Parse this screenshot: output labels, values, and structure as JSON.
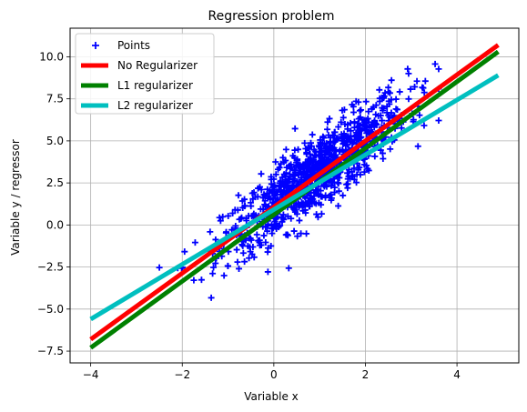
{
  "chart_data": {
    "type": "scatter",
    "title": "Regression problem",
    "xlabel": "Variable x",
    "ylabel": "Variable y / regressor",
    "xlim": [
      -4.45,
      5.35
    ],
    "ylim": [
      -8.2,
      11.7
    ],
    "xticks": [
      -4,
      -2,
      0,
      2,
      4
    ],
    "xtick_labels": [
      "−4",
      "−2",
      "0",
      "2",
      "4"
    ],
    "yticks": [
      -7.5,
      -5.0,
      -2.5,
      0.0,
      2.5,
      5.0,
      7.5,
      10.0
    ],
    "ytick_labels": [
      "−7.5",
      "−5.0",
      "−2.5",
      "0.0",
      "2.5",
      "5.0",
      "7.5",
      "10.0"
    ],
    "grid": true,
    "legend_position": "top-left",
    "points": {
      "name": "Points",
      "color": "#0000ff",
      "marker": "plus",
      "count": 1000,
      "x_mean": 0.9,
      "x_std": 1.0,
      "slope": 2.0,
      "intercept": 1.2,
      "noise_std": 1.1,
      "x_range": [
        -2.5,
        3.6
      ],
      "y_range": [
        -4.4,
        10.5
      ]
    },
    "series": [
      {
        "name": "No Regularizer",
        "color": "#ff0000",
        "x": [
          -4.0,
          4.9
        ],
        "y": [
          -6.8,
          10.7
        ]
      },
      {
        "name": "L1 regularizer",
        "color": "#008000",
        "x": [
          -4.0,
          4.9
        ],
        "y": [
          -7.3,
          10.3
        ]
      },
      {
        "name": "L2 regularizer",
        "color": "#00bfbf",
        "x": [
          -4.0,
          4.9
        ],
        "y": [
          -5.6,
          8.9
        ]
      }
    ]
  }
}
